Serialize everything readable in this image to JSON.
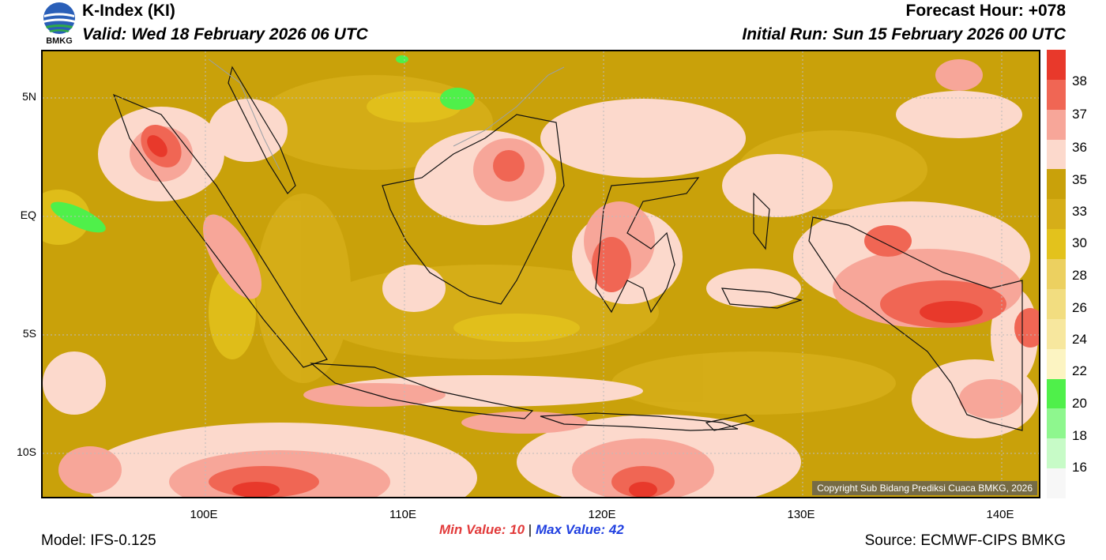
{
  "header": {
    "title": "K-Index (KI)",
    "valid": "Valid: Wed 18 February 2026 06 UTC",
    "forecast_hour": "Forecast Hour: +078",
    "initial_run": "Initial Run: Sun 15 February 2026 00 UTC",
    "logo_text": "BMKG"
  },
  "axes": {
    "lat_labels": [
      "5N",
      "EQ",
      "5S",
      "10S"
    ],
    "lon_labels": [
      "100E",
      "110E",
      "120E",
      "130E",
      "140E"
    ]
  },
  "legend": {
    "levels": [
      "38",
      "37",
      "36",
      "35",
      "33",
      "30",
      "28",
      "26",
      "24",
      "22",
      "20",
      "18",
      "16"
    ],
    "colors": [
      "#e8392b",
      "#f06654",
      "#f7a699",
      "#fcd9cc",
      "#c9a10a",
      "#d6ae18",
      "#e3c21c",
      "#ecd060",
      "#f2dd80",
      "#f7e79e",
      "#fcf4c2",
      "#4ff04a",
      "#8ef78e",
      "#c7fbc7",
      "#f7f7f7"
    ]
  },
  "map": {
    "copyright": "Copyright Sub Bidang Prediksi Cuaca BMKG, 2026"
  },
  "footer": {
    "min_label": "Min Value:",
    "min_value": "10",
    "separator": "|",
    "max_label": "Max Value:",
    "max_value": "42",
    "model": "Model: IFS-0.125",
    "source": "Source: ECMWF-CIPS BMKG"
  }
}
